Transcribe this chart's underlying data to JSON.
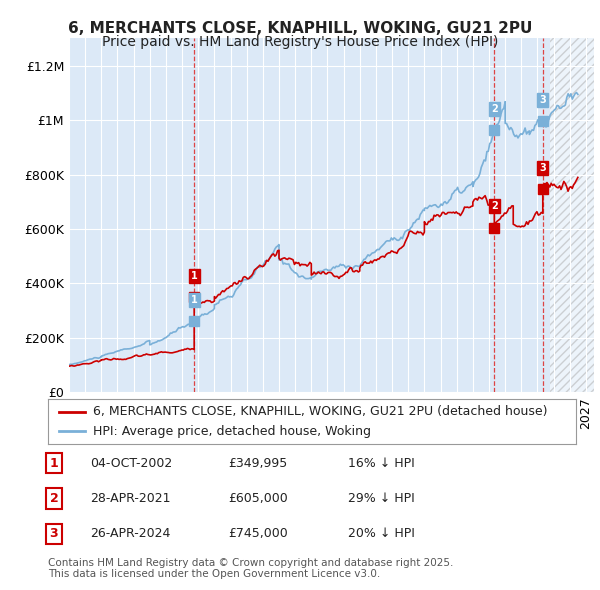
{
  "title": "6, MERCHANTS CLOSE, KNAPHILL, WOKING, GU21 2PU",
  "subtitle": "Price paid vs. HM Land Registry's House Price Index (HPI)",
  "ylabel_ticks": [
    "£0",
    "£200K",
    "£400K",
    "£600K",
    "£800K",
    "£1M",
    "£1.2M"
  ],
  "ytick_values": [
    0,
    200000,
    400000,
    600000,
    800000,
    1000000,
    1200000
  ],
  "ylim": [
    0,
    1300000
  ],
  "xlim_start": 1995.0,
  "xlim_end": 2027.5,
  "plot_bg_color": "#dce9f7",
  "grid_color": "#ffffff",
  "red_line_color": "#cc0000",
  "blue_line_color": "#7ab0d8",
  "transaction_color": "#cc0000",
  "hpi_marker_color": "#7ab0d8",
  "sale_markers": [
    {
      "year": 2002.75,
      "price": 349995,
      "label": "1"
    },
    {
      "year": 2021.33,
      "price": 605000,
      "label": "2"
    },
    {
      "year": 2024.33,
      "price": 745000,
      "label": "3"
    }
  ],
  "sale_vlines": [
    2002.75,
    2021.33,
    2024.33
  ],
  "legend_entries": [
    "6, MERCHANTS CLOSE, KNAPHILL, WOKING, GU21 2PU (detached house)",
    "HPI: Average price, detached house, Woking"
  ],
  "table_rows": [
    {
      "num": "1",
      "date": "04-OCT-2002",
      "price": "£349,995",
      "hpi": "16% ↓ HPI"
    },
    {
      "num": "2",
      "date": "28-APR-2021",
      "price": "£605,000",
      "hpi": "29% ↓ HPI"
    },
    {
      "num": "3",
      "date": "26-APR-2024",
      "price": "£745,000",
      "hpi": "20% ↓ HPI"
    }
  ],
  "footer": "Contains HM Land Registry data © Crown copyright and database right 2025.\nThis data is licensed under the Open Government Licence v3.0.",
  "title_fontsize": 11,
  "subtitle_fontsize": 10,
  "tick_fontsize": 9,
  "legend_fontsize": 9,
  "table_fontsize": 9,
  "footer_fontsize": 7.5,
  "hatch_start": 2024.75
}
